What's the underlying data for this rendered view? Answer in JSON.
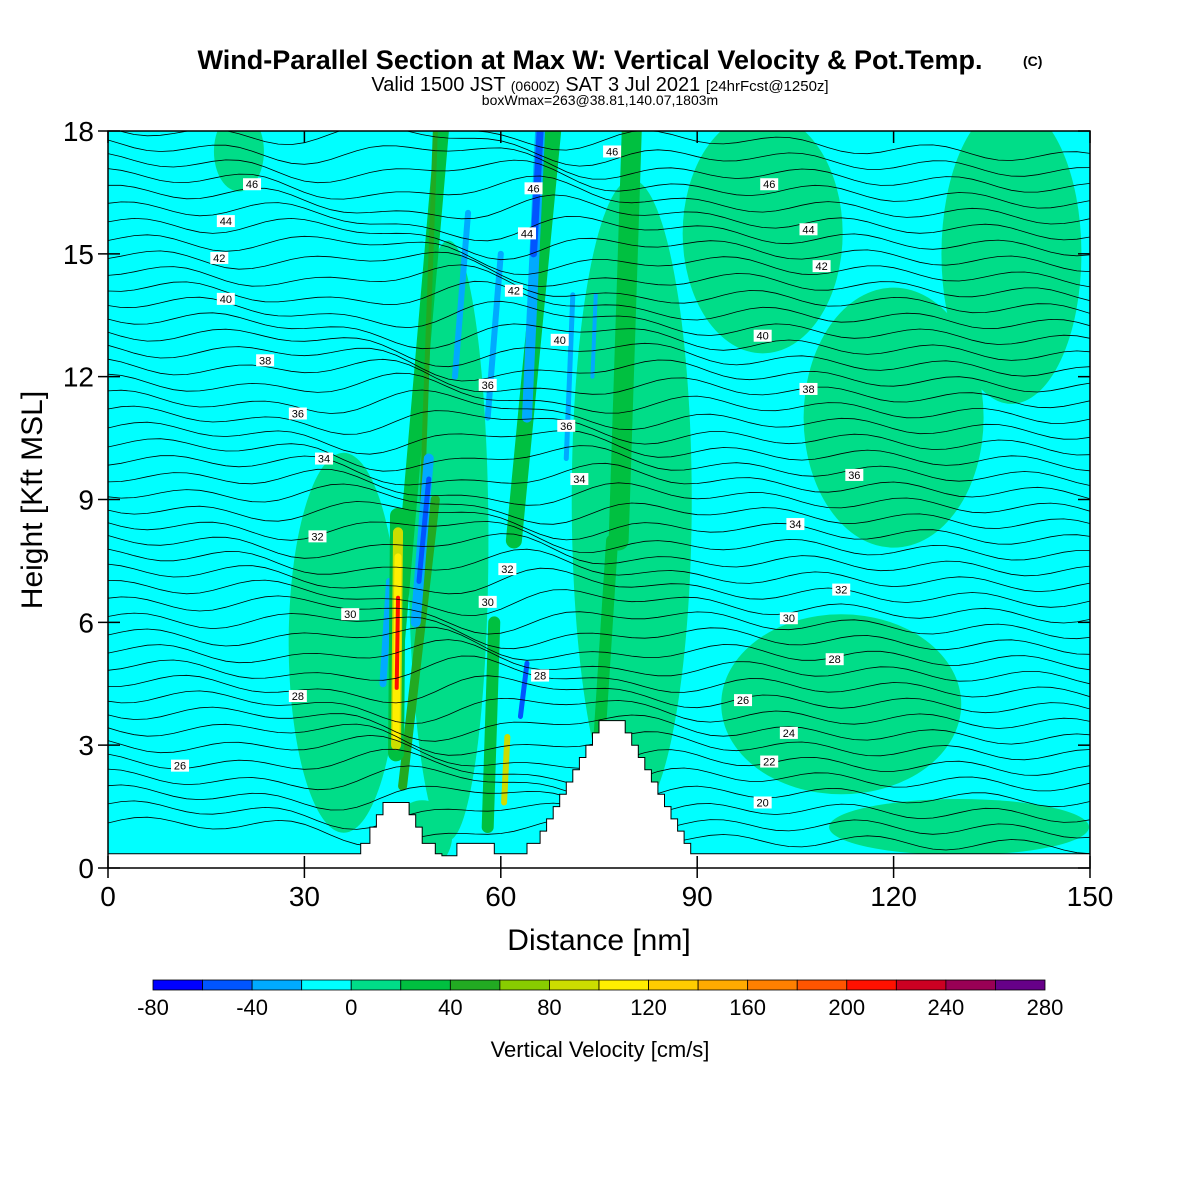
{
  "title": "Wind-Parallel Section at Max W: Vertical Velocity & Pot.Temp.",
  "title_unit": "(C)",
  "subtitle": {
    "valid_prefix": "Valid 1500 JST",
    "zulu": "(0600Z)",
    "date": "SAT 3 Jul 2021",
    "forecast": "[24hrFcst@1250z]"
  },
  "box_note": "boxWmax=263@38.81,140.07,1803m",
  "chart_data": {
    "type": "heatmap",
    "xlabel": "Distance [nm]",
    "ylabel": "Height [Kft MSL]",
    "xlim": [
      0,
      150
    ],
    "ylim": [
      0,
      18
    ],
    "x_ticks": [
      0,
      30,
      60,
      90,
      120,
      150
    ],
    "y_ticks": [
      0,
      3,
      6,
      9,
      12,
      15,
      18
    ],
    "colorbar": {
      "label": "Vertical Velocity [cm/s]",
      "levels": [
        -80,
        -60,
        -40,
        -20,
        0,
        20,
        40,
        60,
        80,
        100,
        120,
        140,
        160,
        180,
        200,
        220,
        240,
        260,
        280
      ],
      "tick_labels": [
        "-80",
        "-40",
        "0",
        "40",
        "80",
        "120",
        "160",
        "200",
        "240",
        "280"
      ],
      "colors": [
        "#0000ff",
        "#0055ff",
        "#00aaff",
        "#00ffff",
        "#00dd88",
        "#00c040",
        "#22aa22",
        "#88cc00",
        "#ccdd00",
        "#ffee00",
        "#ffcc00",
        "#ffaa00",
        "#ff8000",
        "#ff5500",
        "#ff1100",
        "#cc0022",
        "#990055",
        "#660088"
      ]
    },
    "background_color": "#00ffff",
    "terrain": [
      [
        0,
        0.35
      ],
      [
        38.6,
        0.35
      ],
      [
        38.6,
        0.6
      ],
      [
        40,
        0.6
      ],
      [
        40,
        1
      ],
      [
        41,
        1
      ],
      [
        41,
        1.3
      ],
      [
        42,
        1.3
      ],
      [
        42,
        1.6
      ],
      [
        46,
        1.6
      ],
      [
        46,
        1.3
      ],
      [
        47,
        1.3
      ],
      [
        47,
        1
      ],
      [
        48,
        1
      ],
      [
        48,
        0.6
      ],
      [
        50,
        0.6
      ],
      [
        50,
        0.35
      ],
      [
        51,
        0.35
      ],
      [
        51,
        0.3
      ],
      [
        53.3,
        0.3
      ],
      [
        53.3,
        0.6
      ],
      [
        55,
        0.6
      ],
      [
        55,
        0.6
      ],
      [
        59,
        0.6
      ],
      [
        59,
        0.35
      ],
      [
        64,
        0.35
      ],
      [
        64,
        0.6
      ],
      [
        66,
        0.6
      ],
      [
        66,
        0.9
      ],
      [
        67,
        0.9
      ],
      [
        67,
        1.2
      ],
      [
        68,
        1.2
      ],
      [
        68,
        1.5
      ],
      [
        69,
        1.5
      ],
      [
        69,
        1.8
      ],
      [
        70,
        1.8
      ],
      [
        70,
        2.1
      ],
      [
        71,
        2.1
      ],
      [
        71,
        2.4
      ],
      [
        72,
        2.4
      ],
      [
        72,
        2.7
      ],
      [
        73,
        2.7
      ],
      [
        73,
        3
      ],
      [
        74,
        3
      ],
      [
        74,
        3.3
      ],
      [
        75,
        3.3
      ],
      [
        75,
        3.6
      ],
      [
        79,
        3.6
      ],
      [
        79,
        3.3
      ],
      [
        80,
        3.3
      ],
      [
        80,
        3
      ],
      [
        81,
        3
      ],
      [
        81,
        2.7
      ],
      [
        82,
        2.7
      ],
      [
        82,
        2.4
      ],
      [
        83,
        2.4
      ],
      [
        83,
        2.1
      ],
      [
        84,
        2.1
      ],
      [
        84,
        1.8
      ],
      [
        85,
        1.8
      ],
      [
        85,
        1.5
      ],
      [
        86,
        1.5
      ],
      [
        86,
        1.2
      ],
      [
        87,
        1.2
      ],
      [
        87,
        0.9
      ],
      [
        88,
        0.9
      ],
      [
        88,
        0.6
      ],
      [
        89,
        0.6
      ],
      [
        89,
        0.35
      ],
      [
        150,
        0.35
      ]
    ],
    "theta_levels": [
      20,
      22,
      24,
      26,
      28,
      30,
      32,
      34,
      36,
      38,
      40,
      42,
      44,
      46
    ],
    "isentrope_labels": [
      {
        "text": "26",
        "x": 11,
        "y": 2.5
      },
      {
        "text": "28",
        "x": 29,
        "y": 4.2
      },
      {
        "text": "30",
        "x": 37,
        "y": 6.2
      },
      {
        "text": "32",
        "x": 32,
        "y": 8.1
      },
      {
        "text": "34",
        "x": 33,
        "y": 10
      },
      {
        "text": "36",
        "x": 29,
        "y": 11.1
      },
      {
        "text": "38",
        "x": 24,
        "y": 12.4
      },
      {
        "text": "40",
        "x": 18,
        "y": 13.9
      },
      {
        "text": "42",
        "x": 17,
        "y": 14.9
      },
      {
        "text": "44",
        "x": 18,
        "y": 15.8
      },
      {
        "text": "46",
        "x": 22,
        "y": 16.7
      },
      {
        "text": "28",
        "x": 66,
        "y": 4.7
      },
      {
        "text": "30",
        "x": 58,
        "y": 6.5
      },
      {
        "text": "32",
        "x": 61,
        "y": 7.3
      },
      {
        "text": "36",
        "x": 58,
        "y": 11.8
      },
      {
        "text": "34",
        "x": 72,
        "y": 9.5
      },
      {
        "text": "36",
        "x": 70,
        "y": 10.8
      },
      {
        "text": "40",
        "x": 69,
        "y": 12.9
      },
      {
        "text": "42",
        "x": 62,
        "y": 14.1
      },
      {
        "text": "44",
        "x": 64,
        "y": 15.5
      },
      {
        "text": "46",
        "x": 65,
        "y": 16.6
      },
      {
        "text": "46",
        "x": 77,
        "y": 17.5
      },
      {
        "text": "20",
        "x": 100,
        "y": 1.6
      },
      {
        "text": "22",
        "x": 101,
        "y": 2.6
      },
      {
        "text": "24",
        "x": 104,
        "y": 3.3
      },
      {
        "text": "26",
        "x": 97,
        "y": 4.1
      },
      {
        "text": "28",
        "x": 111,
        "y": 5.1
      },
      {
        "text": "30",
        "x": 104,
        "y": 6.1
      },
      {
        "text": "32",
        "x": 112,
        "y": 6.8
      },
      {
        "text": "34",
        "x": 105,
        "y": 8.4
      },
      {
        "text": "36",
        "x": 114,
        "y": 9.6
      },
      {
        "text": "38",
        "x": 107,
        "y": 11.7
      },
      {
        "text": "40",
        "x": 100,
        "y": 13
      },
      {
        "text": "42",
        "x": 109,
        "y": 14.7
      },
      {
        "text": "44",
        "x": 107,
        "y": 15.6
      },
      {
        "text": "46",
        "x": 101,
        "y": 16.7
      }
    ]
  }
}
